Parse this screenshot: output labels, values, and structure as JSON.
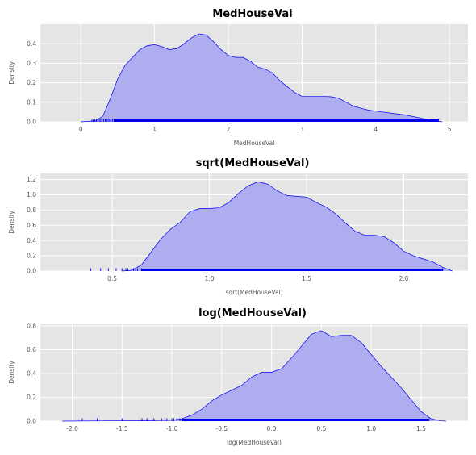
{
  "colors": {
    "panel_bg": "#e5e5e5",
    "grid": "#ffffff",
    "kde_fill": "#aaaaf0",
    "kde_line": "#0000ee",
    "rug": "#0000ee"
  },
  "chart_data": [
    {
      "type": "area",
      "title": "MedHouseVal",
      "xlabel": "MedHouseVal",
      "ylabel": "Density",
      "grid": true,
      "xlim": [
        -0.55,
        5.25
      ],
      "ylim": [
        0,
        0.5
      ],
      "x_ticks": [
        0,
        1,
        2,
        3,
        4,
        5
      ],
      "x_tick_labels": [
        "0",
        "1",
        "2",
        "3",
        "4",
        "5"
      ],
      "y_ticks": [
        0.0,
        0.1,
        0.2,
        0.3,
        0.4
      ],
      "y_tick_labels": [
        "0.0",
        "0.1",
        "0.2",
        "0.3",
        "0.4"
      ],
      "series": [
        {
          "x": [
            0.0,
            0.2,
            0.3,
            0.4,
            0.5,
            0.6,
            0.7,
            0.8,
            0.9,
            1.0,
            1.1,
            1.2,
            1.3,
            1.4,
            1.5,
            1.6,
            1.7,
            1.8,
            1.9,
            2.0,
            2.1,
            2.2,
            2.3,
            2.4,
            2.5,
            2.6,
            2.7,
            2.8,
            2.9,
            3.0,
            3.1,
            3.2,
            3.3,
            3.4,
            3.5,
            3.6,
            3.7,
            3.8,
            3.9,
            4.0,
            4.2,
            4.4,
            4.6,
            4.8,
            4.9
          ],
          "y": [
            0.0,
            0.005,
            0.03,
            0.12,
            0.22,
            0.29,
            0.33,
            0.37,
            0.39,
            0.395,
            0.385,
            0.37,
            0.375,
            0.4,
            0.43,
            0.45,
            0.445,
            0.41,
            0.37,
            0.34,
            0.33,
            0.33,
            0.31,
            0.28,
            0.27,
            0.25,
            0.21,
            0.18,
            0.15,
            0.13,
            0.13,
            0.13,
            0.13,
            0.128,
            0.12,
            0.1,
            0.08,
            0.07,
            0.06,
            0.055,
            0.045,
            0.035,
            0.02,
            0.005,
            0.0
          ]
        }
      ],
      "rug": [
        0.15,
        0.17,
        0.19,
        0.21,
        0.23,
        0.25,
        0.27,
        0.29,
        0.31,
        0.33,
        0.35,
        0.37,
        0.39,
        0.41,
        0.43,
        0.45,
        4.85
      ]
    },
    {
      "type": "area",
      "title": "sqrt(MedHouseVal)",
      "xlabel": "sqrt(MedHouseVal)",
      "ylabel": "Density",
      "grid": true,
      "xlim": [
        0.13,
        2.33
      ],
      "ylim": [
        0,
        1.28
      ],
      "x_ticks": [
        0.5,
        1.0,
        1.5,
        2.0
      ],
      "x_tick_labels": [
        "0.5",
        "1.0",
        "1.5",
        "2.0"
      ],
      "y_ticks": [
        0.0,
        0.2,
        0.4,
        0.6,
        0.8,
        1.0,
        1.2
      ],
      "y_tick_labels": [
        "0.0",
        "0.2",
        "0.4",
        "0.6",
        "0.8",
        "1.0",
        "1.2"
      ],
      "series": [
        {
          "x": [
            0.55,
            0.6,
            0.65,
            0.7,
            0.75,
            0.8,
            0.85,
            0.9,
            0.95,
            1.0,
            1.05,
            1.1,
            1.15,
            1.2,
            1.25,
            1.3,
            1.35,
            1.4,
            1.45,
            1.5,
            1.55,
            1.6,
            1.65,
            1.7,
            1.75,
            1.8,
            1.85,
            1.9,
            1.95,
            2.0,
            2.05,
            2.1,
            2.15,
            2.2,
            2.25
          ],
          "y": [
            0.0,
            0.01,
            0.08,
            0.25,
            0.42,
            0.55,
            0.64,
            0.78,
            0.82,
            0.82,
            0.83,
            0.9,
            1.02,
            1.12,
            1.17,
            1.14,
            1.05,
            0.99,
            0.98,
            0.97,
            0.9,
            0.84,
            0.75,
            0.63,
            0.52,
            0.47,
            0.47,
            0.45,
            0.37,
            0.26,
            0.2,
            0.16,
            0.12,
            0.05,
            0.0
          ]
        }
      ],
      "rug": [
        0.39,
        0.44,
        0.48,
        0.52,
        0.55,
        0.57,
        0.58,
        0.6,
        0.61,
        0.62,
        0.63,
        0.65,
        2.2
      ]
    },
    {
      "type": "area",
      "title": "log(MedHouseVal)",
      "xlabel": "log(MedHouseVal)",
      "ylabel": "Density",
      "grid": true,
      "xlim": [
        -2.32,
        1.97
      ],
      "ylim": [
        0,
        0.82
      ],
      "x_ticks": [
        -2.0,
        -1.5,
        -1.0,
        -0.5,
        0.0,
        0.5,
        1.0,
        1.5
      ],
      "x_tick_labels": [
        "-2.0",
        "-1.5",
        "-1.0",
        "-0.5",
        "0.0",
        "0.5",
        "1.0",
        "1.5"
      ],
      "y_ticks": [
        0.0,
        0.2,
        0.4,
        0.6,
        0.8
      ],
      "y_tick_labels": [
        "0.0",
        "0.2",
        "0.4",
        "0.6",
        "0.8"
      ],
      "series": [
        {
          "x": [
            -2.1,
            -1.5,
            -1.2,
            -1.0,
            -0.9,
            -0.8,
            -0.7,
            -0.6,
            -0.5,
            -0.4,
            -0.3,
            -0.2,
            -0.1,
            0.0,
            0.1,
            0.2,
            0.3,
            0.4,
            0.5,
            0.6,
            0.7,
            0.8,
            0.9,
            1.0,
            1.1,
            1.2,
            1.3,
            1.4,
            1.5,
            1.6,
            1.7,
            1.75
          ],
          "y": [
            0.0,
            0.003,
            0.005,
            0.008,
            0.02,
            0.05,
            0.1,
            0.17,
            0.22,
            0.26,
            0.3,
            0.37,
            0.41,
            0.41,
            0.44,
            0.53,
            0.63,
            0.73,
            0.76,
            0.71,
            0.72,
            0.72,
            0.66,
            0.56,
            0.46,
            0.37,
            0.28,
            0.18,
            0.08,
            0.02,
            0.003,
            0.0
          ]
        }
      ],
      "rug": [
        -1.9,
        -1.75,
        -1.5,
        -1.3,
        -1.25,
        -1.18,
        -1.1,
        -1.05,
        -1.0,
        -0.98,
        -0.95,
        -0.92,
        -0.9,
        1.58
      ]
    }
  ]
}
